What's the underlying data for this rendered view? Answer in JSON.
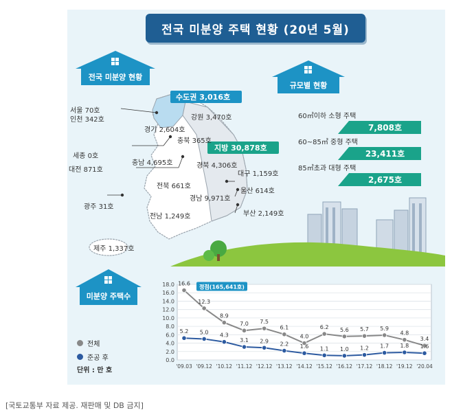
{
  "title": "전국 미분양 주택 현황 (20년 5월)",
  "map_section": {
    "heading": "전국 미분양 현황",
    "sudogwon": "수도권 3,016호",
    "jibang": "지방 30,878호",
    "regions": {
      "seoul": "서울  70호",
      "incheon": "인천 342호",
      "gyeonggi": "경기 2,604호",
      "gangwon": "강원 3,470호",
      "chungbuk": "충북 365호",
      "sejong": "세종 0호",
      "chungnam": "충남 4,695호",
      "daejeon": "대전 871호",
      "gyeongbuk": "경북 4,306호",
      "daegu": "대구 1,159호",
      "jeonbuk": "전북 661호",
      "ulsan": "울산 614호",
      "gyeongnam": "경남 9,971호",
      "gwangju": "광주 31호",
      "busan": "부산 2,149호",
      "jeonnam": "전남 1,249호",
      "jeju": "제주 1,337호"
    }
  },
  "size_section": {
    "heading": "규모별 현황",
    "items": [
      {
        "label": "60㎡이하 소형 주택",
        "value": "7,808호"
      },
      {
        "label": "60~85㎡ 중형 주택",
        "value": "23,411호"
      },
      {
        "label": "85㎡초과 대형 주택",
        "value": "2,675호"
      }
    ]
  },
  "chart_section": {
    "heading": "미분양 주택수",
    "legend": [
      {
        "label": "전체",
        "color": "#888888"
      },
      {
        "label": "준공 후",
        "color": "#2c5aa0"
      }
    ],
    "unit": "단위 : 만 호"
  },
  "source": "[국토교통부 자료 제공. 재판매 및 DB 금지]",
  "chart_data": {
    "type": "line",
    "categories": [
      "'09.03",
      "'09.12",
      "'10.12",
      "'11.12",
      "'12.12",
      "'13.12",
      "'14.12",
      "'15.12",
      "'16.12",
      "'17.12",
      "'18.12",
      "'19.12",
      "'20.04"
    ],
    "series": [
      {
        "name": "전체",
        "color": "#888888",
        "values": [
          16.6,
          12.3,
          8.9,
          7.0,
          7.5,
          6.1,
          4.0,
          6.2,
          5.6,
          5.7,
          5.9,
          4.8,
          3.4
        ]
      },
      {
        "name": "준공 후",
        "color": "#2c5aa0",
        "values": [
          5.2,
          5.0,
          4.3,
          3.1,
          2.9,
          2.2,
          1.6,
          1.1,
          1.0,
          1.2,
          1.7,
          1.8,
          1.6
        ]
      }
    ],
    "value_labels": [
      [
        "16.6",
        "12.3",
        "8.9",
        "7.0",
        "7.5",
        "6.1",
        "4.0",
        "6.2",
        "5.6",
        "5.7",
        "5.9",
        "4.8",
        "3.4"
      ],
      [
        "5.2",
        "5.0",
        "4.3",
        "3.1",
        "2.9",
        "2.2",
        "1.6",
        "1.1",
        "1.0",
        "1.2",
        "1.7",
        "1.8",
        "1.6"
      ]
    ],
    "annotation": "정점(165,641호)",
    "ylim": [
      0,
      18
    ],
    "yticks": [
      "0.0",
      "2.0",
      "4.0",
      "6.0",
      "8.0",
      "10.0",
      "12.0",
      "14.0",
      "16.0",
      "18.0"
    ],
    "grid": true
  }
}
